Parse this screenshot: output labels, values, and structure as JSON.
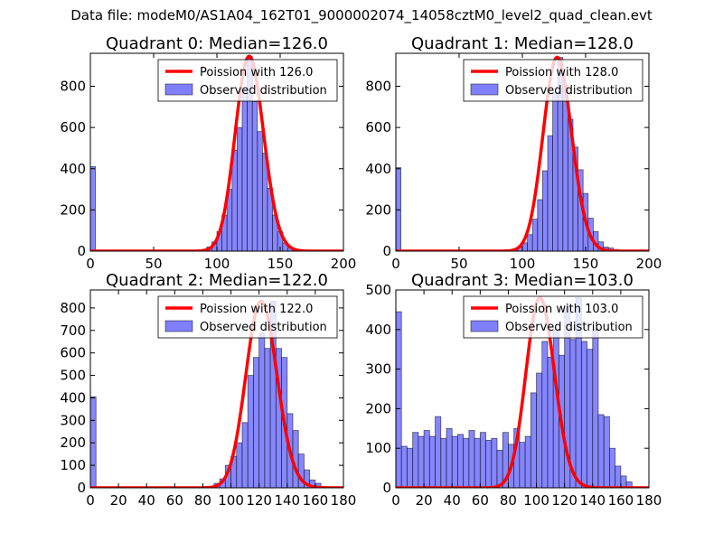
{
  "figure": {
    "suptitle": "Data file: modeM0/AS1A04_162T01_9000002074_14058cztM0_level2_quad_clean.evt",
    "bar_color": "#8080ff",
    "line_color": "#ff0000"
  },
  "chart_data": [
    {
      "type": "bar",
      "title": "Quadrant 0: Median=126.0",
      "median": 126.0,
      "xlim": [
        0,
        200
      ],
      "ylim": [
        0,
        960
      ],
      "xticks": [
        "0",
        "50",
        "100",
        "150",
        "200"
      ],
      "xtick_values": [
        0,
        50,
        100,
        150,
        200
      ],
      "yticks": [
        "0",
        "200",
        "400",
        "600",
        "800"
      ],
      "ytick_values": [
        0,
        200,
        400,
        600,
        800
      ],
      "bin_width": 4,
      "bin_starts": [
        0,
        88,
        92,
        96,
        100,
        104,
        108,
        112,
        116,
        120,
        124,
        128,
        132,
        136,
        140,
        144,
        148,
        152,
        156,
        160,
        164,
        168,
        172,
        176
      ],
      "counts": [
        410,
        5,
        20,
        45,
        95,
        175,
        300,
        490,
        600,
        785,
        945,
        725,
        580,
        475,
        305,
        175,
        95,
        40,
        15,
        8,
        3,
        2,
        1,
        1
      ],
      "legend": [
        "Poission with 126.0",
        "Observed distribution"
      ]
    },
    {
      "type": "bar",
      "title": "Quadrant 1: Median=128.0",
      "median": 128.0,
      "xlim": [
        0,
        200
      ],
      "ylim": [
        0,
        960
      ],
      "xticks": [
        "0",
        "50",
        "100",
        "150",
        "200"
      ],
      "xtick_values": [
        0,
        50,
        100,
        150,
        200
      ],
      "yticks": [
        "0",
        "200",
        "400",
        "600",
        "800"
      ],
      "ytick_values": [
        0,
        200,
        400,
        600,
        800
      ],
      "bin_width": 4,
      "bin_starts": [
        0,
        92,
        96,
        100,
        104,
        108,
        112,
        116,
        120,
        124,
        128,
        132,
        136,
        140,
        144,
        148,
        152,
        156,
        160,
        164,
        168,
        172,
        176,
        180,
        184
      ],
      "counts": [
        405,
        5,
        20,
        40,
        80,
        155,
        250,
        390,
        560,
        770,
        940,
        805,
        640,
        505,
        395,
        280,
        160,
        95,
        45,
        20,
        15,
        8,
        4,
        2,
        1
      ],
      "legend": [
        "Poission with 128.0",
        "Observed distribution"
      ]
    },
    {
      "type": "bar",
      "title": "Quadrant 2: Median=122.0",
      "median": 122.0,
      "xlim": [
        0,
        180
      ],
      "ylim": [
        0,
        880
      ],
      "xticks": [
        "0",
        "20",
        "40",
        "60",
        "80",
        "100",
        "120",
        "140",
        "160",
        "180"
      ],
      "xtick_values": [
        0,
        20,
        40,
        60,
        80,
        100,
        120,
        140,
        160,
        180
      ],
      "yticks": [
        "0",
        "100",
        "200",
        "300",
        "400",
        "500",
        "600",
        "700",
        "800"
      ],
      "ytick_values": [
        0,
        100,
        200,
        300,
        400,
        500,
        600,
        700,
        800
      ],
      "bin_width": 4,
      "bin_starts": [
        0,
        88,
        92,
        96,
        100,
        104,
        108,
        112,
        116,
        120,
        124,
        128,
        132,
        136,
        140,
        144,
        148,
        152,
        156,
        160,
        164
      ],
      "counts": [
        405,
        20,
        40,
        100,
        140,
        200,
        290,
        500,
        580,
        685,
        620,
        830,
        620,
        580,
        330,
        255,
        150,
        80,
        35,
        20,
        5
      ],
      "legend": [
        "Poission with 122.0",
        "Observed distribution"
      ]
    },
    {
      "type": "bar",
      "title": "Quadrant 3: Median=103.0",
      "median": 103.0,
      "xlim": [
        0,
        180
      ],
      "ylim": [
        0,
        500
      ],
      "xticks": [
        "0",
        "20",
        "40",
        "60",
        "80",
        "100",
        "120",
        "140",
        "160",
        "180"
      ],
      "xtick_values": [
        0,
        20,
        40,
        60,
        80,
        100,
        120,
        140,
        160,
        180
      ],
      "yticks": [
        "0",
        "100",
        "200",
        "300",
        "400",
        "500"
      ],
      "ytick_values": [
        0,
        100,
        200,
        300,
        400,
        500
      ],
      "bin_width": 4,
      "bin_starts": [
        0,
        4,
        8,
        12,
        16,
        20,
        24,
        28,
        32,
        36,
        40,
        44,
        48,
        52,
        56,
        60,
        64,
        68,
        72,
        76,
        80,
        84,
        88,
        92,
        96,
        100,
        104,
        108,
        112,
        116,
        120,
        124,
        128,
        132,
        136,
        140,
        144,
        148,
        152,
        156,
        160,
        164
      ],
      "counts": [
        445,
        105,
        100,
        140,
        130,
        145,
        130,
        180,
        125,
        150,
        130,
        135,
        125,
        145,
        125,
        140,
        120,
        125,
        95,
        140,
        110,
        150,
        115,
        130,
        240,
        290,
        370,
        330,
        400,
        335,
        460,
        375,
        480,
        370,
        350,
        400,
        185,
        180,
        100,
        55,
        30,
        15
      ],
      "legend": [
        "Poission with 103.0",
        "Observed distribution"
      ]
    }
  ]
}
